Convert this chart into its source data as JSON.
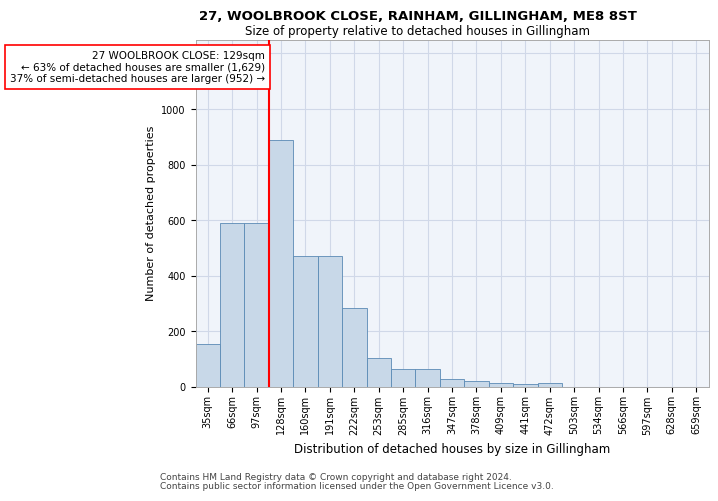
{
  "title1": "27, WOOLBROOK CLOSE, RAINHAM, GILLINGHAM, ME8 8ST",
  "title2": "Size of property relative to detached houses in Gillingham",
  "xlabel": "Distribution of detached houses by size in Gillingham",
  "ylabel": "Number of detached properties",
  "footer1": "Contains HM Land Registry data © Crown copyright and database right 2024.",
  "footer2": "Contains public sector information licensed under the Open Government Licence v3.0.",
  "annotation_line1": "27 WOOLBROOK CLOSE: 129sqm",
  "annotation_line2": "← 63% of detached houses are smaller (1,629)",
  "annotation_line3": "37% of semi-detached houses are larger (952) →",
  "bar_color": "#c8d8e8",
  "bar_edge_color": "#5a8ab5",
  "reference_line_x": 2.5,
  "reference_line_color": "red",
  "categories": [
    "35sqm",
    "66sqm",
    "97sqm",
    "128sqm",
    "160sqm",
    "191sqm",
    "222sqm",
    "253sqm",
    "285sqm",
    "316sqm",
    "347sqm",
    "378sqm",
    "409sqm",
    "441sqm",
    "472sqm",
    "503sqm",
    "534sqm",
    "566sqm",
    "597sqm",
    "628sqm",
    "659sqm"
  ],
  "values": [
    155,
    590,
    590,
    890,
    470,
    470,
    285,
    105,
    65,
    63,
    30,
    22,
    15,
    10,
    13,
    0,
    0,
    0,
    0,
    0,
    0
  ],
  "ylim": [
    0,
    1250
  ],
  "yticks": [
    0,
    200,
    400,
    600,
    800,
    1000,
    1200
  ],
  "grid_color": "#d0d8e8",
  "bg_color": "#f0f4fa",
  "title_fontsize": 9.5,
  "subtitle_fontsize": 8.5,
  "xlabel_fontsize": 8.5,
  "ylabel_fontsize": 8,
  "tick_fontsize": 7,
  "annotation_fontsize": 7.5,
  "footer_fontsize": 6.5
}
